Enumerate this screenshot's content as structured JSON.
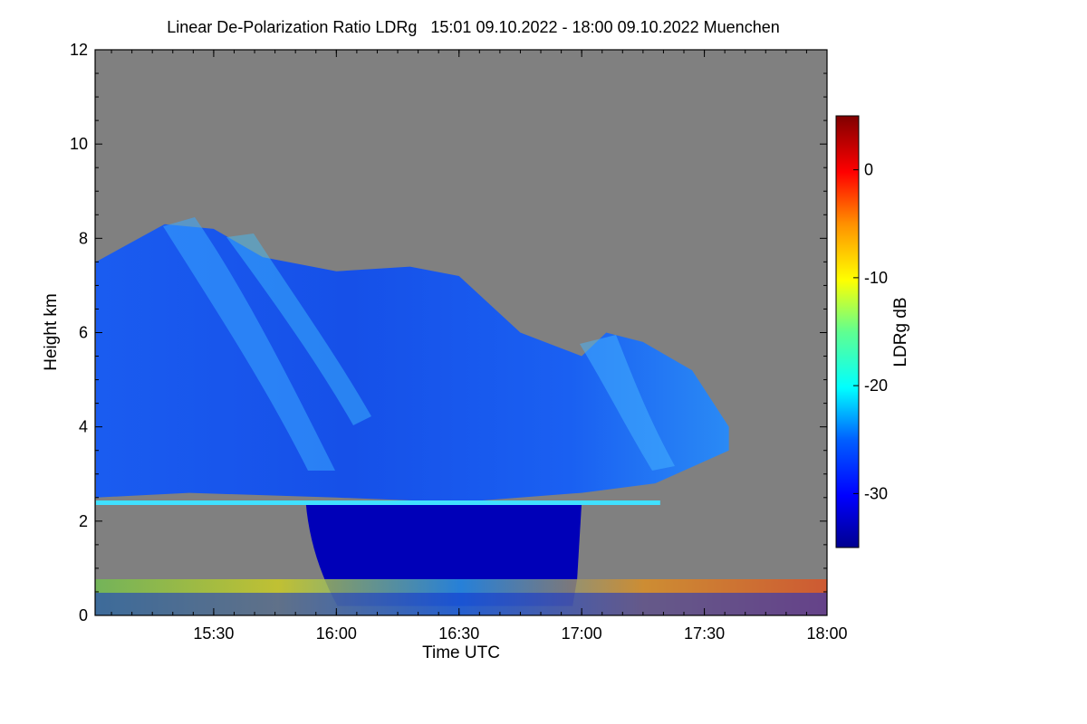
{
  "chart_data": {
    "type": "heatmap",
    "title": "Linear De-Polarization Ratio LDRg   15:01 09.10.2022 - 18:00 09.10.2022 Muenchen",
    "xlabel": "Time UTC",
    "ylabel": "Height km",
    "x_range": [
      "15:01",
      "18:00"
    ],
    "x_ticks": [
      "15:30",
      "16:00",
      "16:30",
      "17:00",
      "17:30",
      "18:00"
    ],
    "x_tick_hours": [
      15.5,
      16.0,
      16.5,
      17.0,
      17.5,
      18.0
    ],
    "ylim": [
      0,
      12
    ],
    "y_ticks": [
      0,
      2,
      4,
      6,
      8,
      10,
      12
    ],
    "colorbar": {
      "label": "LDRg dB",
      "range": [
        -35,
        5
      ],
      "ticks": [
        0,
        -10,
        -20,
        -30
      ],
      "colormap": "jet"
    },
    "no_signal_color": "#808080",
    "features": {
      "cloud_top_km": [
        [
          15.02,
          7.5
        ],
        [
          15.3,
          8.3
        ],
        [
          15.5,
          8.2
        ],
        [
          15.7,
          7.6
        ],
        [
          16.0,
          7.3
        ],
        [
          16.3,
          7.4
        ],
        [
          16.5,
          7.2
        ],
        [
          16.75,
          6.0
        ],
        [
          17.0,
          5.5
        ],
        [
          17.1,
          6.0
        ],
        [
          17.25,
          5.8
        ],
        [
          17.45,
          5.2
        ],
        [
          17.6,
          4.0
        ]
      ],
      "cloud_base_km": [
        [
          15.02,
          2.5
        ],
        [
          15.4,
          2.6
        ],
        [
          16.0,
          2.5
        ],
        [
          16.5,
          2.4
        ],
        [
          17.0,
          2.6
        ],
        [
          17.3,
          2.8
        ],
        [
          17.6,
          3.5
        ]
      ],
      "bright_layer_km": 2.4,
      "bright_layer_hours": [
        15.02,
        17.32
      ],
      "rain_region_hours": [
        15.82,
        17.0
      ]
    }
  }
}
